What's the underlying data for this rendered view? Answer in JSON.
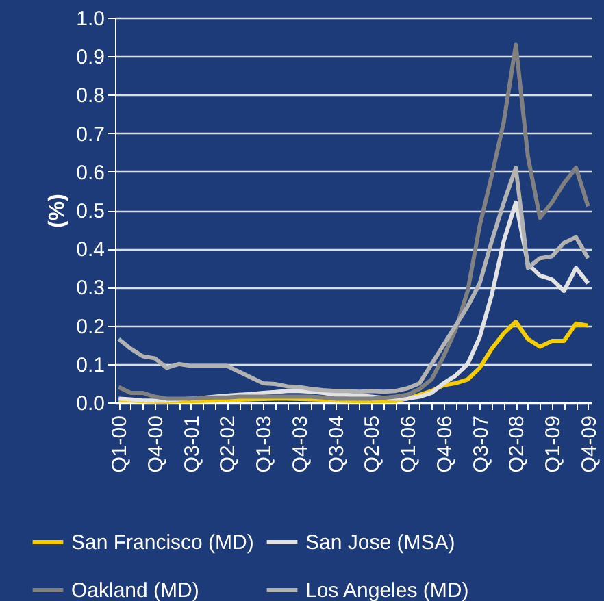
{
  "chart_data": {
    "type": "line",
    "ylabel": "(%)",
    "categories": [
      "Q1-00",
      null,
      null,
      "Q4-00",
      null,
      null,
      "Q3-01",
      null,
      null,
      "Q2-02",
      null,
      null,
      "Q1-03",
      null,
      null,
      "Q4-03",
      null,
      null,
      "Q3-04",
      null,
      null,
      "Q2-05",
      null,
      null,
      "Q1-06",
      null,
      null,
      "Q4-06",
      null,
      null,
      "Q3-07",
      null,
      null,
      "Q2-08",
      null,
      null,
      "Q1-09",
      null,
      null,
      "Q4-09"
    ],
    "series": [
      {
        "name": "San Francisco (MD)",
        "color": "#f5cc00",
        "values": [
          0.005,
          0.005,
          0.003,
          0.002,
          0.002,
          0.003,
          0.003,
          0.004,
          0.005,
          0.006,
          0.007,
          0.008,
          0.009,
          0.01,
          0.01,
          0.009,
          0.008,
          0.007,
          0.005,
          0.004,
          0.003,
          0.003,
          0.003,
          0.004,
          0.01,
          0.02,
          0.03,
          0.045,
          0.05,
          0.06,
          0.09,
          0.14,
          0.18,
          0.21,
          0.165,
          0.145,
          0.16,
          0.16,
          0.205,
          0.2
        ]
      },
      {
        "name": "San Jose (MSA)",
        "color": "#e2e2e2",
        "values": [
          0.01,
          0.008,
          0.005,
          0.005,
          0.005,
          0.008,
          0.01,
          0.012,
          0.015,
          0.018,
          0.02,
          0.022,
          0.025,
          0.027,
          0.03,
          0.03,
          0.028,
          0.025,
          0.02,
          0.02,
          0.018,
          0.015,
          0.012,
          0.01,
          0.01,
          0.015,
          0.025,
          0.05,
          0.07,
          0.1,
          0.17,
          0.28,
          0.42,
          0.52,
          0.36,
          0.33,
          0.32,
          0.29,
          0.35,
          0.31
        ]
      },
      {
        "name": "Oakland (MD)",
        "color": "#808080",
        "values": [
          0.04,
          0.025,
          0.025,
          0.015,
          0.01,
          0.01,
          0.01,
          0.012,
          0.013,
          0.013,
          0.015,
          0.015,
          0.015,
          0.015,
          0.015,
          0.015,
          0.015,
          0.013,
          0.01,
          0.01,
          0.01,
          0.01,
          0.012,
          0.015,
          0.02,
          0.035,
          0.06,
          0.12,
          0.19,
          0.29,
          0.46,
          0.59,
          0.73,
          0.93,
          0.64,
          0.48,
          0.52,
          0.57,
          0.61,
          0.51
        ]
      },
      {
        "name": "Los Angeles (MD)",
        "color": "#b2b2b2",
        "values": [
          0.165,
          0.14,
          0.12,
          0.115,
          0.09,
          0.1,
          0.095,
          0.095,
          0.095,
          0.095,
          0.08,
          0.065,
          0.05,
          0.048,
          0.042,
          0.04,
          0.035,
          0.032,
          0.03,
          0.03,
          0.028,
          0.03,
          0.028,
          0.03,
          0.037,
          0.05,
          0.1,
          0.15,
          0.2,
          0.25,
          0.31,
          0.42,
          0.52,
          0.61,
          0.35,
          0.375,
          0.38,
          0.415,
          0.43,
          0.375
        ]
      }
    ],
    "ylim": [
      0,
      1.0
    ],
    "yticks": [
      {
        "value": 0,
        "label": "0.0"
      },
      0.1,
      0.2,
      0.3,
      0.4,
      0.5,
      0.6,
      0.7,
      0.8,
      0.9,
      {
        "value": 1,
        "label": "1.0"
      }
    ],
    "grid": "y",
    "legend": "bottom"
  }
}
